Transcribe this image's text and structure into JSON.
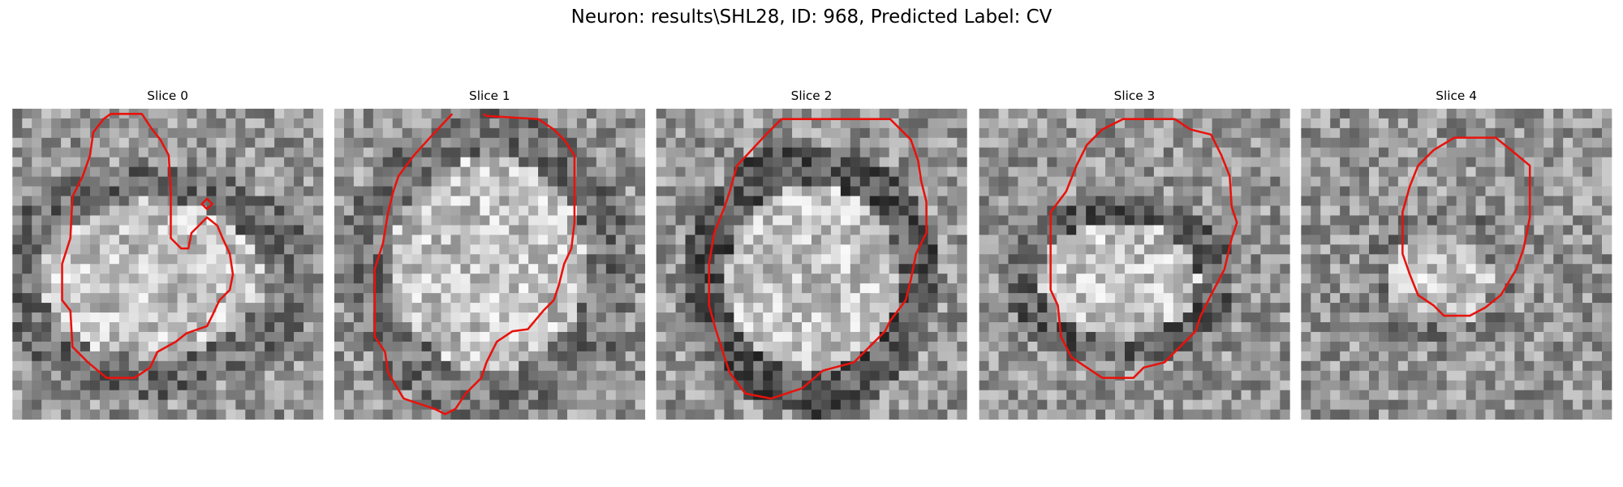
{
  "title": "Neuron: results\\SHL28, ID: 968, Predicted Label: CV",
  "panels": [
    {
      "title": "Slice 0"
    },
    {
      "title": "Slice 1"
    },
    {
      "title": "Slice 2"
    },
    {
      "title": "Slice 3"
    },
    {
      "title": "Slice 4"
    }
  ]
}
